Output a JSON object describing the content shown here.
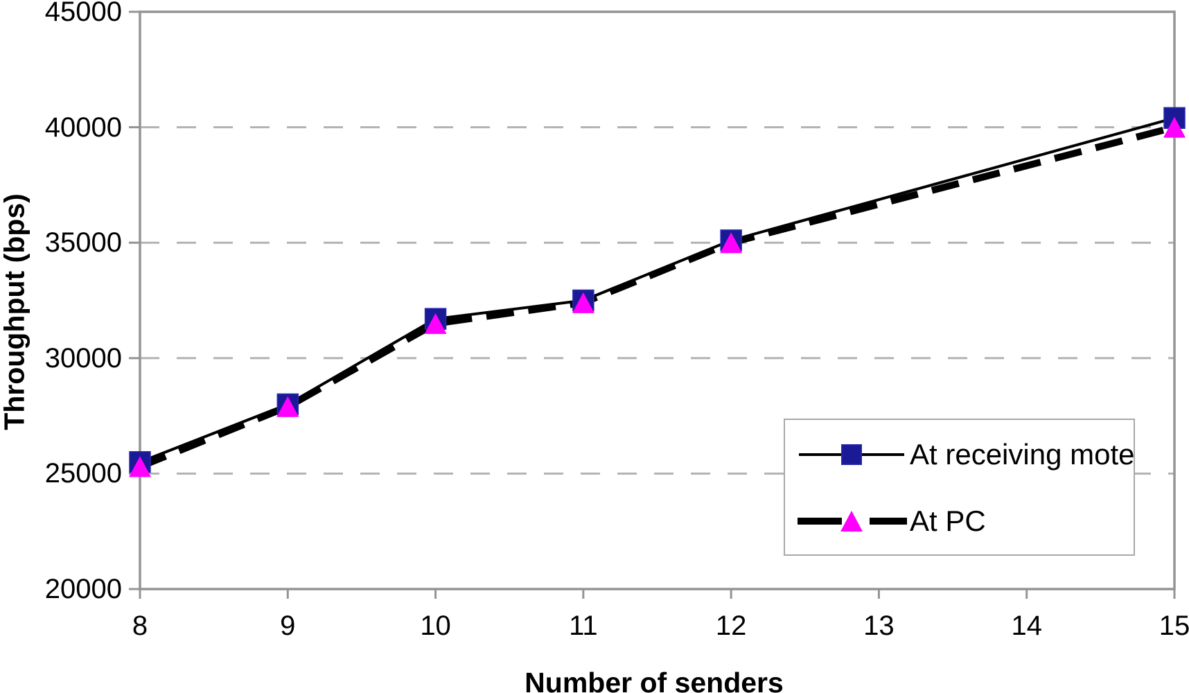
{
  "figure": {
    "background": "#ffffff"
  },
  "chart_data": {
    "type": "line",
    "title": "",
    "xlabel": "Number of senders",
    "ylabel": "Throughput (bps)",
    "x": [
      8,
      9,
      10,
      11,
      12,
      15
    ],
    "series": [
      {
        "name": "At receiving mote",
        "values": [
          25500,
          28000,
          31700,
          32500,
          35100,
          40400
        ],
        "line_style": "solid",
        "line_color": "#000000",
        "marker": "square",
        "marker_color": "#1a1a96"
      },
      {
        "name": "At PC",
        "values": [
          25300,
          27900,
          31500,
          32400,
          35000,
          40000
        ],
        "line_style": "dashed",
        "line_color": "#000000",
        "marker": "triangle",
        "marker_color": "#ff00ff"
      }
    ],
    "xlim": [
      8,
      15
    ],
    "ylim": [
      20000,
      45000
    ],
    "x_ticks": [
      8,
      9,
      10,
      11,
      12,
      13,
      14,
      15
    ],
    "y_ticks": [
      20000,
      25000,
      30000,
      35000,
      40000,
      45000
    ],
    "grid": "horizontal-dashed",
    "grid_color": "#b3b3b3",
    "axis_color": "#949494",
    "legend_position": "inside-bottom-right"
  },
  "legend": {
    "items": [
      {
        "label": "At receiving mote",
        "marker": "navy-square",
        "line": "thin-solid-black"
      },
      {
        "label": "At PC",
        "marker": "magenta-triangle",
        "line": "thick-dashed-black"
      }
    ]
  },
  "colors": {
    "navy_marker": "#1a1a96",
    "navy_marker_edge": "#2b2bb0",
    "magenta_marker": "#ff00ff",
    "series_line": "#000000",
    "gridline": "#b3b3b3",
    "axis_frame": "#949494",
    "legend_border": "#a8a8a8",
    "text": "#000000"
  }
}
